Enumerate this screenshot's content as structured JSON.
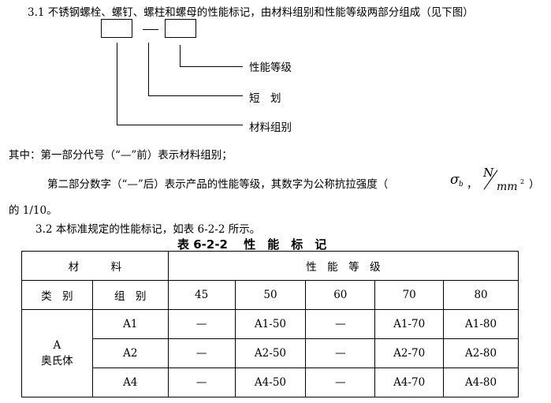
{
  "section_3_1": "3.1  不锈钢螺栓、螺钉、螺柱和螺母的性能标记，由材料组别和性能等级两部分组成（见下图）",
  "diagram": {
    "dash": "—",
    "label_grade": "性能等级",
    "label_dash": "短　划",
    "label_material": "材料组别"
  },
  "explain_1": "其中：第一部分代号（“—”前）表示材料组别；",
  "explain_2": "第二部分数字（“—”后）表示产品的性能等级，其数字为公称抗拉强度（",
  "sigma": "σ",
  "sigma_sub": "b",
  "comma": "，",
  "unit_num": "N",
  "unit_den": "mm",
  "unit_exp": "2",
  "close_paren": "）",
  "explain_3": "的 1/10。",
  "section_3_2": "3.2  本标准规定的性能标记，如表 6-2-2 所示。",
  "table": {
    "title": "表 6-2-2　 性　能　标　记",
    "header_material": "材　　　料",
    "header_grade": "性　能　等　级",
    "sub_headers": [
      "类　别",
      "组　别",
      "45",
      "50",
      "60",
      "70",
      "80"
    ],
    "category": "A",
    "category_name": "奥氏体",
    "rows": [
      [
        "A1",
        "—",
        "A1-50",
        "—",
        "A1-70",
        "A1-80"
      ],
      [
        "A2",
        "—",
        "A2-50",
        "—",
        "A2-70",
        "A2-80"
      ],
      [
        "A4",
        "—",
        "A4-50",
        "—",
        "A4-70",
        "A4-80"
      ]
    ]
  }
}
